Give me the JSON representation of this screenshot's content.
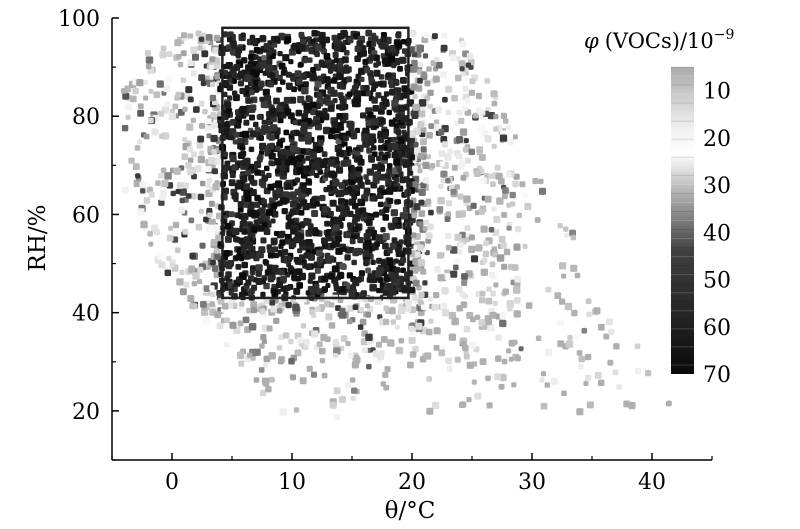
{
  "chart_data": {
    "type": "scatter",
    "title": "",
    "xlabel": "θ/°C",
    "ylabel": "RH/%",
    "xlim": [
      -5,
      45
    ],
    "ylim": [
      10,
      100
    ],
    "x_ticks": [
      "0",
      "10",
      "20",
      "30",
      "40"
    ],
    "x_tick_values": [
      0,
      10,
      20,
      30,
      40
    ],
    "y_ticks": [
      "20",
      "40",
      "60",
      "80",
      "100"
    ],
    "y_tick_values": [
      20,
      40,
      60,
      80,
      100
    ],
    "colorbar": {
      "title_symbol": "φ",
      "title_text": "(VOCs)/10",
      "title_exponent": "−9",
      "range": [
        5,
        70
      ],
      "ticks": [
        "10",
        "20",
        "30",
        "40",
        "50",
        "60",
        "70"
      ],
      "tick_values": [
        10,
        20,
        30,
        40,
        50,
        60,
        70
      ],
      "colors": [
        "#b0b0b0",
        "#ffffff",
        "#1a1a1a"
      ]
    },
    "highlight_box": {
      "x": [
        4.2,
        19.7
      ],
      "y": [
        43,
        98
      ]
    },
    "point_color_scale": "gray",
    "grid": false,
    "legend": "colorbar-right",
    "point_generation": {
      "count": 3200,
      "seed": 7,
      "note": "dense field of points, darker (higher VOCs) concentrated in box region"
    }
  }
}
